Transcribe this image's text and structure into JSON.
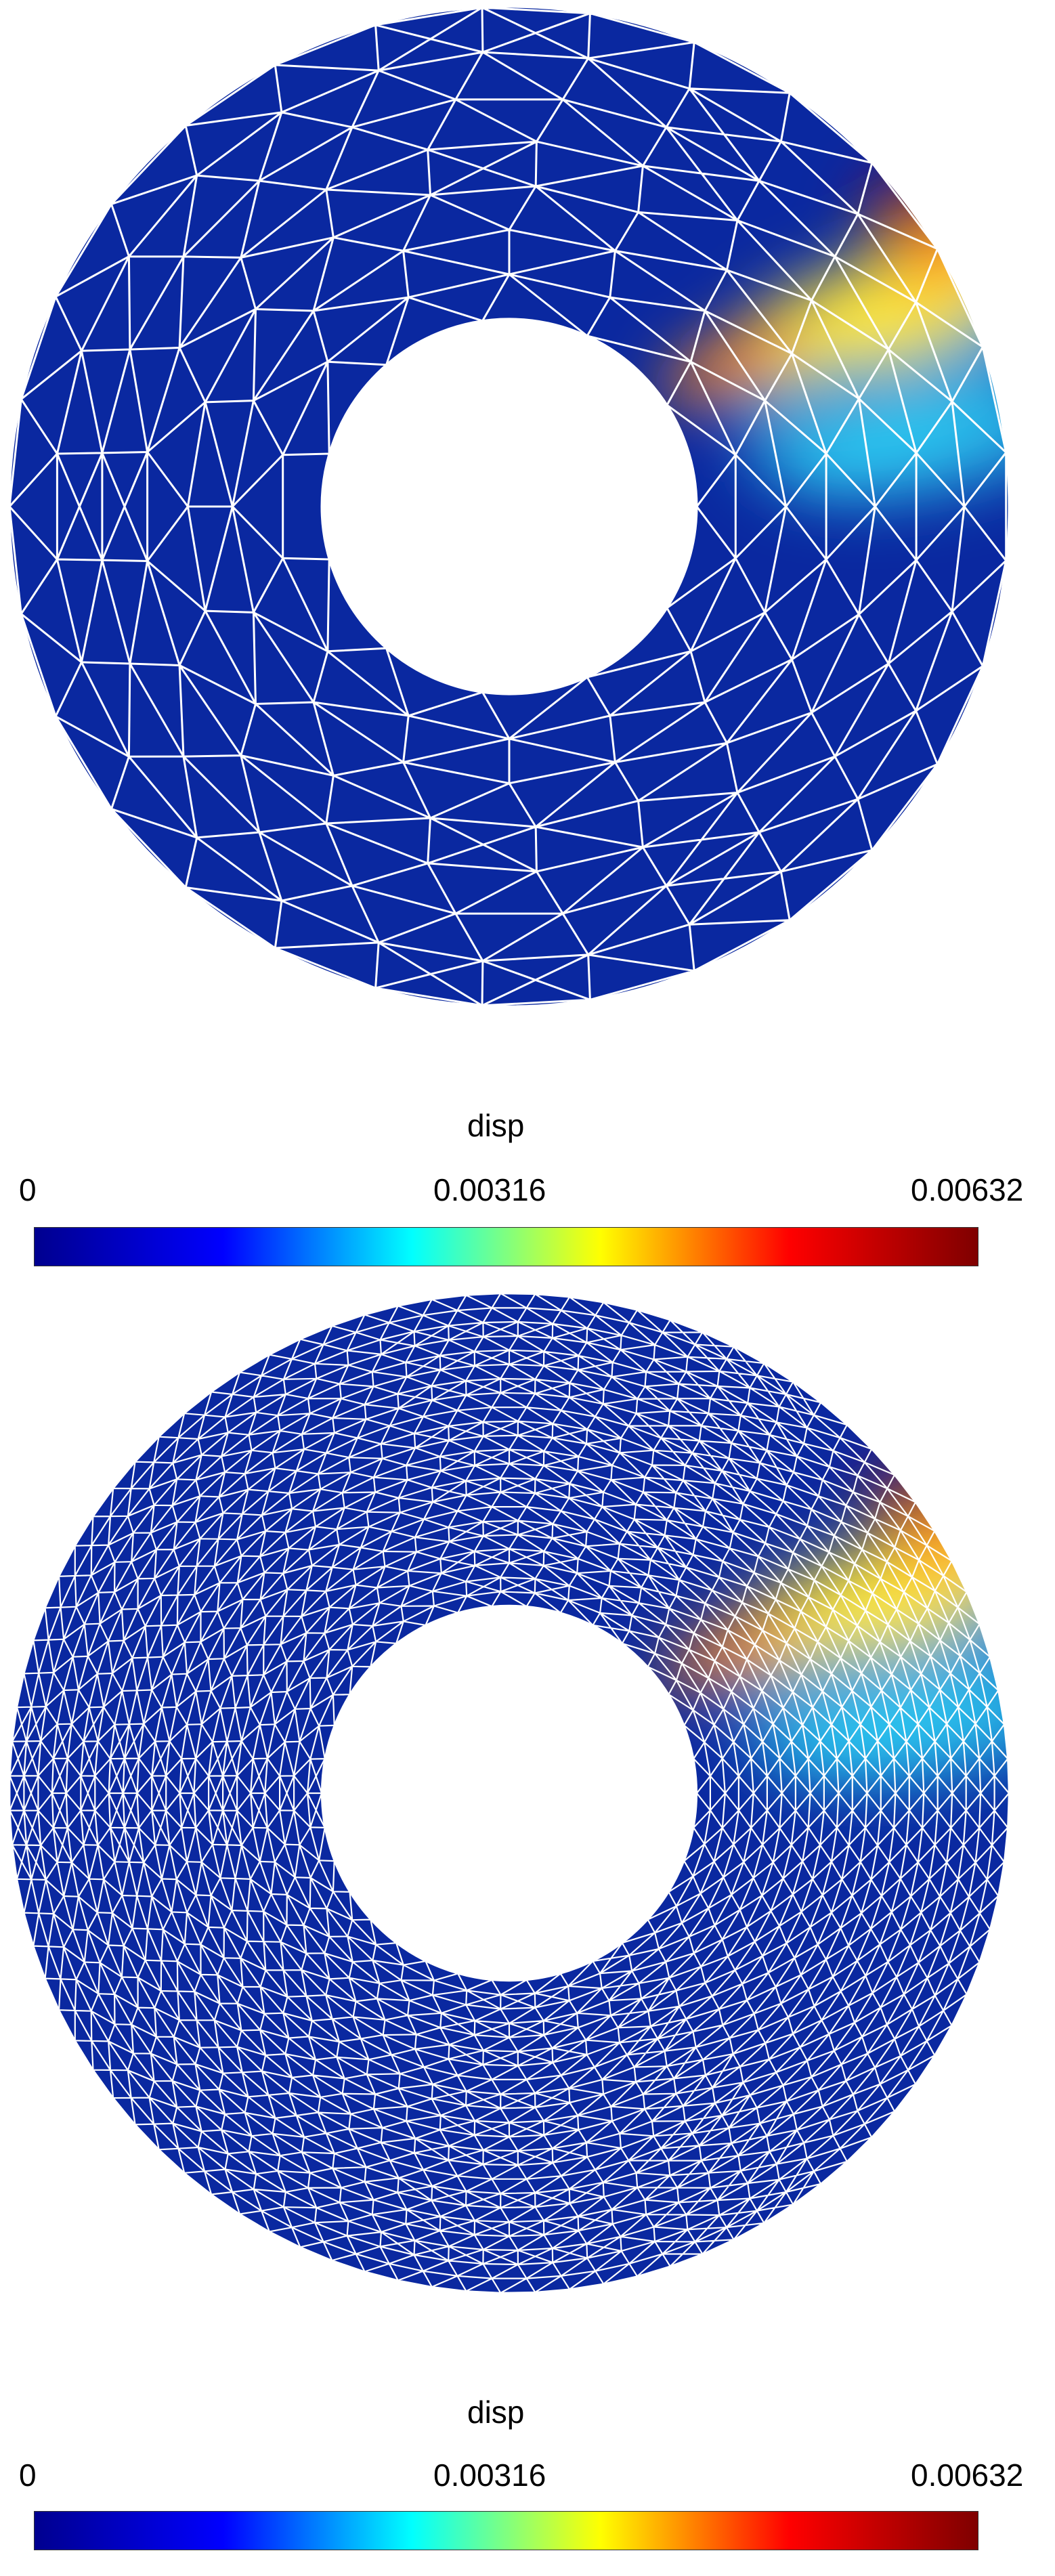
{
  "colorbar": {
    "title": "disp",
    "min_label": "0",
    "mid_label": "0.00316",
    "max_label": "0.00632",
    "stops": [
      "#00008f",
      "#0000ff",
      "#00ffff",
      "#ffff00",
      "#ff0000",
      "#7f0000"
    ]
  },
  "colors": {
    "mesh_fill": "#0a28a0",
    "mesh_lines": "#ffffff",
    "hot": "#ffe83a",
    "warm": "#ff8c1a",
    "peak": "#b31010",
    "cool": "#33e6ff"
  },
  "panels": [
    {
      "name": "coarse-mesh",
      "resolution": "coarse"
    },
    {
      "name": "fine-mesh",
      "resolution": "fine"
    }
  ]
}
